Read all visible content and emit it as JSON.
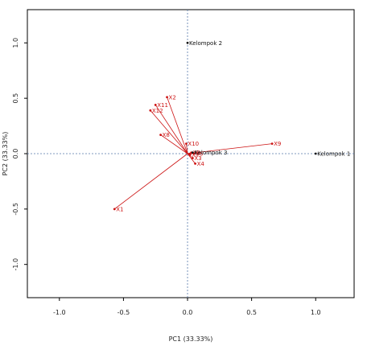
{
  "chart_data": {
    "type": "scatter",
    "title": "",
    "xlabel": "PC1 (33.33%)",
    "ylabel": "PC2 (33.33%)",
    "xlim": [
      -1.25,
      1.3
    ],
    "ylim": [
      -1.3,
      1.3
    ],
    "x_ticks": [
      -1.0,
      -0.5,
      0.0,
      0.5,
      1.0
    ],
    "x_tick_labels": [
      "-1.0",
      "-0.5",
      "0.0",
      "0.5",
      "1.0"
    ],
    "y_ticks": [
      -1.0,
      -0.5,
      0.0,
      0.5,
      1.0
    ],
    "y_tick_labels": [
      "-1.0",
      "-0.5",
      "0.0",
      "0.5",
      "1.0"
    ],
    "reference_lines": {
      "x": 0,
      "y": 0
    },
    "vectors": [
      {
        "label": "X1",
        "x": -0.57,
        "y": -0.5
      },
      {
        "label": "X2",
        "x": -0.16,
        "y": 0.51
      },
      {
        "label": "X11",
        "x": -0.25,
        "y": 0.44
      },
      {
        "label": "X12",
        "x": -0.29,
        "y": 0.39
      },
      {
        "label": "X8",
        "x": -0.21,
        "y": 0.17
      },
      {
        "label": "X10",
        "x": -0.01,
        "y": 0.09
      },
      {
        "label": "X9",
        "x": 0.66,
        "y": 0.09
      },
      {
        "label": "X4",
        "x": 0.06,
        "y": -0.09
      },
      {
        "label": "X3",
        "x": 0.04,
        "y": -0.04
      },
      {
        "label": "X5",
        "x": 0.03,
        "y": 0.01
      },
      {
        "label": "X6",
        "x": 0.05,
        "y": 0.0
      },
      {
        "label": "X7",
        "x": 0.02,
        "y": -0.01
      }
    ],
    "groups": [
      {
        "label": "Kelompok 1",
        "x": 1.0,
        "y": 0.0
      },
      {
        "label": "Kelompok 2",
        "x": 0.0,
        "y": 1.0
      },
      {
        "label": "Kelompok 3",
        "x": 0.04,
        "y": 0.01
      }
    ],
    "colors": {
      "vector": "#cc1111",
      "group": "#111111",
      "reference_line": "#5577aa"
    }
  }
}
